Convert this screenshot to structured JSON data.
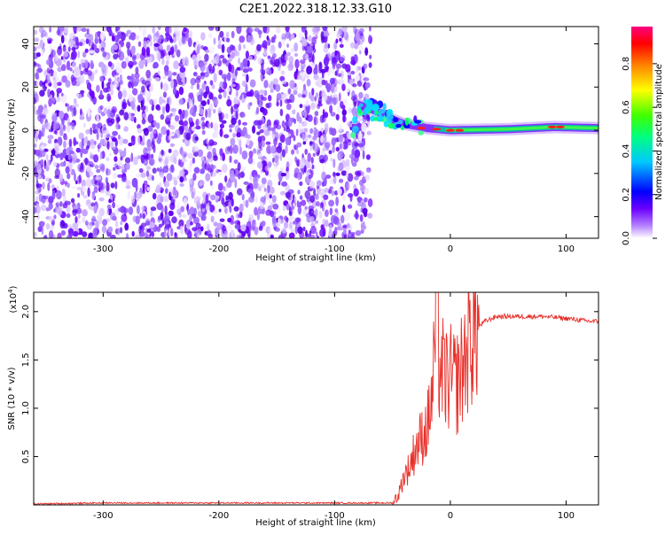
{
  "title": "C2E1.2022.318.12.33.G10",
  "chart_data": [
    {
      "type": "heatmap",
      "xlabel": "Height of straight line (km)",
      "ylabel": "Frequency (Hz)",
      "xlim": [
        -360,
        128
      ],
      "ylim": [
        -50,
        48
      ],
      "xticks": [
        -300,
        -200,
        -100,
        0,
        100
      ],
      "yticks": [
        -40,
        -20,
        0,
        20,
        40
      ],
      "colorbar": {
        "label": "Normalized spectral amplitude",
        "range": [
          0.0,
          0.97
        ],
        "ticks": [
          "0.0",
          "0.2",
          "0.4",
          "0.6",
          "0.8"
        ],
        "colormap": [
          "#ffffff",
          "#6a00ff",
          "#0000ff",
          "#00ffff",
          "#00ff00",
          "#ffff00",
          "#ff0000",
          "#ff0080"
        ]
      },
      "noise_region_x": [
        -360,
        -75
      ],
      "signal_track": [
        {
          "x": -80,
          "y": 12
        },
        {
          "x": -70,
          "y": 10
        },
        {
          "x": -60,
          "y": 8
        },
        {
          "x": -50,
          "y": 5
        },
        {
          "x": -40,
          "y": 3
        },
        {
          "x": -30,
          "y": 2
        },
        {
          "x": -20,
          "y": 1
        },
        {
          "x": 0,
          "y": 0
        },
        {
          "x": 50,
          "y": 0.5
        },
        {
          "x": 90,
          "y": 1.5
        },
        {
          "x": 128,
          "y": 1
        }
      ]
    },
    {
      "type": "line",
      "xlabel": "Height of straight line (km)",
      "ylabel": "SNR (10 * v/v)",
      "y_multiplier": "(x10",
      "y_multiplier_exp": "4",
      "y_multiplier_close": ")",
      "xlim": [
        -360,
        128
      ],
      "ylim": [
        0,
        2.2
      ],
      "xticks": [
        -300,
        -200,
        -100,
        0,
        100
      ],
      "yticks": [
        "0.5",
        "1.0",
        "1.5",
        "2.0"
      ],
      "color": "#e8302a",
      "series": [
        {
          "x": [
            -360,
            -300,
            -200,
            -100,
            -50,
            -45,
            -40,
            -35,
            -30,
            -25,
            -20,
            -15,
            -12,
            -10,
            -5,
            0,
            5,
            10,
            15,
            20,
            25,
            30,
            40,
            60,
            80,
            100,
            120,
            128
          ],
          "y": [
            0.01,
            0.02,
            0.02,
            0.02,
            0.02,
            0.1,
            0.3,
            0.4,
            0.6,
            0.7,
            0.8,
            1.2,
            2.2,
            1.5,
            1.3,
            1.3,
            1.25,
            1.4,
            1.65,
            1.8,
            1.85,
            1.9,
            1.95,
            1.95,
            1.95,
            1.93,
            1.9,
            1.9
          ]
        }
      ]
    }
  ]
}
